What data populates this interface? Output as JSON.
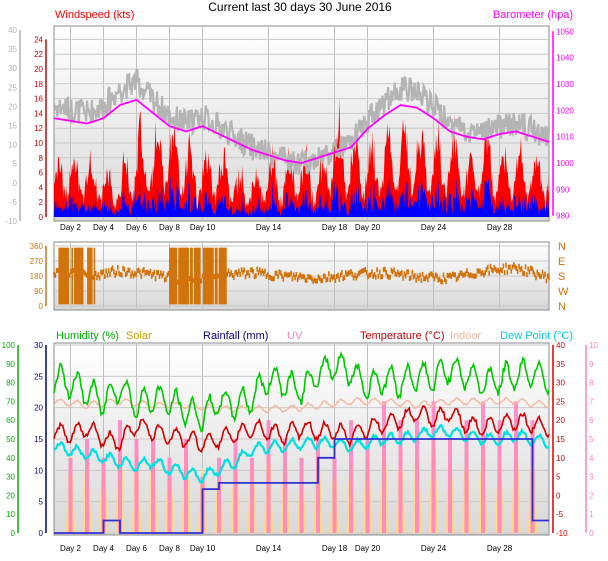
{
  "title": "Current last 30 days 30 June 2016",
  "colors": {
    "wind_avg": "#ff0000",
    "wind_gust": "#ff0000",
    "wind_min": "#0000ff",
    "baro": "#ff00ff",
    "baro_gray": "#b4b4b4",
    "winddir": "#d2720a",
    "humidity": "#00c800",
    "solar": "#c8a000",
    "rain": "#000080",
    "uv": "#ff80c0",
    "temp": "#d20000",
    "indoor": "#f4b8a0",
    "dew": "#00e0e0",
    "plot_bg_top": "#ffffff",
    "plot_bg_bottom": "#d8d8d8"
  },
  "chart_data": [
    {
      "type": "area",
      "name": "wind",
      "title": "",
      "legend": [
        "Windspeed (kts)",
        "Barometer (hpa)"
      ],
      "x_ticks": [
        "Day 2",
        "Day 4",
        "Day 6",
        "Day 8",
        "Day 10",
        "Day 14",
        "Day 18",
        "Day 20",
        "Day 24",
        "Day 28"
      ],
      "x_tick_days": [
        2,
        4,
        6,
        8,
        10,
        14,
        18,
        20,
        24,
        28
      ],
      "x_range_days": [
        1,
        31
      ],
      "y_left_outer": {
        "range": [
          -10,
          40
        ],
        "ticks": [
          -10,
          -5,
          0,
          5,
          10,
          15,
          20,
          25,
          30,
          35,
          40
        ]
      },
      "y_left_inner": {
        "label": "Windspeed (kts)",
        "range": [
          0,
          25
        ],
        "ticks": [
          0,
          2,
          4,
          6,
          8,
          10,
          12,
          14,
          16,
          18,
          20,
          22,
          24
        ]
      },
      "y_right": {
        "label": "Barometer (hpa)",
        "range": [
          978,
          1052
        ],
        "ticks": [
          980,
          990,
          1000,
          1010,
          1020,
          1030,
          1040,
          1050
        ]
      },
      "series": [
        {
          "name": "Windspeed (kts)",
          "color": "#ff0000",
          "style": "filled-bars",
          "day": [
            1,
            2,
            3,
            4,
            5,
            6,
            7,
            8,
            9,
            10,
            11,
            12,
            13,
            14,
            15,
            16,
            17,
            18,
            19,
            20,
            21,
            22,
            23,
            24,
            25,
            26,
            27,
            28,
            29,
            30,
            31
          ],
          "peak": [
            9,
            12,
            10,
            8,
            7,
            15,
            14,
            17,
            12,
            10,
            11,
            8,
            7,
            10,
            10,
            11,
            7,
            18,
            13,
            12,
            13,
            14,
            16,
            13,
            15,
            11,
            14,
            11,
            12,
            10,
            9
          ]
        },
        {
          "name": "Barometer (hpa)",
          "color": "#ff00ff",
          "day": [
            1,
            2,
            3,
            4,
            5,
            6,
            7,
            8,
            9,
            10,
            11,
            12,
            13,
            14,
            15,
            16,
            17,
            18,
            19,
            20,
            21,
            22,
            23,
            24,
            25,
            26,
            27,
            28,
            29,
            30,
            31
          ],
          "value": [
            1017,
            1016,
            1015,
            1017,
            1022,
            1024,
            1019,
            1014,
            1012,
            1014,
            1011,
            1008,
            1005,
            1003,
            1001,
            1000,
            1002,
            1004,
            1006,
            1013,
            1018,
            1022,
            1021,
            1017,
            1012,
            1010,
            1009,
            1011,
            1012,
            1010,
            1008
          ]
        }
      ]
    },
    {
      "type": "scatter",
      "name": "wind direction",
      "y_left": {
        "range": [
          0,
          360
        ],
        "ticks": [
          0,
          90,
          180,
          270,
          360
        ]
      },
      "y_right": {
        "labels": [
          "N",
          "W",
          "S",
          "E",
          "N"
        ]
      },
      "series": [
        {
          "name": "Wind direction",
          "color": "#d2720a",
          "day": [
            1,
            3,
            5,
            7,
            9,
            11,
            13,
            15,
            17,
            19,
            21,
            23,
            25,
            27,
            29,
            31
          ],
          "value": [
            200,
            180,
            210,
            190,
            150,
            185,
            200,
            180,
            165,
            190,
            200,
            175,
            165,
            210,
            230,
            170
          ]
        }
      ]
    },
    {
      "type": "line",
      "name": "climate",
      "legend": [
        "Humidity (%)",
        "Solar",
        "Rainfall (mm)",
        "UV",
        "Temperature (°C)",
        "Indoor",
        "Dew Point (°C)"
      ],
      "y_left_humidity": {
        "label": "Humidity (%)",
        "range": [
          0,
          100
        ],
        "ticks": [
          0,
          10,
          20,
          30,
          40,
          50,
          60,
          70,
          80,
          90,
          100
        ]
      },
      "y_left_rain": {
        "label": "Rainfall (mm)",
        "range": [
          0,
          30
        ],
        "ticks": [
          0,
          5,
          10,
          15,
          20,
          25,
          30
        ]
      },
      "y_right_temp": {
        "label": "Temperature (°C)",
        "range": [
          -10,
          40
        ],
        "ticks": [
          -10,
          -5,
          0,
          5,
          10,
          15,
          20,
          25,
          30,
          35,
          40
        ]
      },
      "y_right_uv": {
        "label": "UV",
        "range": [
          0,
          10
        ],
        "ticks": [
          0,
          1,
          2,
          3,
          4,
          5,
          6,
          7,
          8,
          9,
          10
        ]
      },
      "series": [
        {
          "name": "Humidity (%)",
          "color": "#00c800",
          "day": [
            1,
            2,
            3,
            4,
            5,
            6,
            7,
            8,
            9,
            10,
            11,
            12,
            13,
            14,
            15,
            16,
            17,
            18,
            19,
            20,
            21,
            22,
            23,
            24,
            25,
            26,
            27,
            28,
            29,
            30,
            31
          ],
          "value": [
            82,
            80,
            75,
            70,
            78,
            68,
            72,
            70,
            65,
            62,
            70,
            68,
            72,
            82,
            80,
            76,
            84,
            90,
            86,
            78,
            82,
            80,
            84,
            82,
            88,
            84,
            80,
            82,
            84,
            86,
            82
          ]
        },
        {
          "name": "Temperature (°C)",
          "color": "#d20000",
          "day": [
            1,
            2,
            3,
            4,
            5,
            6,
            7,
            8,
            9,
            10,
            11,
            12,
            13,
            14,
            15,
            16,
            17,
            18,
            19,
            20,
            21,
            22,
            23,
            24,
            25,
            26,
            27,
            28,
            29,
            30,
            31
          ],
          "value": [
            17,
            16,
            18,
            15,
            14,
            19,
            17,
            16,
            15,
            14,
            15,
            16,
            18,
            17,
            16,
            18,
            17,
            17,
            16,
            18,
            19,
            20,
            22,
            20,
            22,
            19,
            18,
            19,
            20,
            19,
            18
          ]
        },
        {
          "name": "Indoor",
          "color": "#f4b8a0",
          "day": [
            1,
            3,
            5,
            7,
            9,
            11,
            13,
            15,
            17,
            19,
            21,
            23,
            25,
            27,
            29,
            31
          ],
          "value": [
            25,
            24,
            25,
            24,
            24,
            23,
            23,
            23,
            24,
            25,
            25,
            24,
            25,
            25,
            25,
            24
          ]
        },
        {
          "name": "Dew Point (°C)",
          "color": "#00e0e0",
          "day": [
            1,
            2,
            3,
            4,
            5,
            6,
            7,
            8,
            9,
            10,
            11,
            12,
            13,
            14,
            15,
            16,
            17,
            18,
            19,
            20,
            21,
            22,
            23,
            24,
            25,
            26,
            27,
            28,
            29,
            30,
            31
          ],
          "value": [
            13,
            12,
            11,
            10,
            9,
            8,
            9,
            7,
            6,
            5,
            7,
            9,
            12,
            13,
            13,
            14,
            14,
            14,
            13,
            14,
            15,
            15,
            16,
            17,
            17,
            16,
            15,
            15,
            16,
            15,
            14
          ]
        },
        {
          "name": "Rainfall (mm)",
          "color": "#3030d0",
          "day": [
            1,
            3,
            4,
            5,
            9,
            10,
            11,
            12,
            16,
            17,
            18,
            20,
            21,
            23,
            25,
            27,
            29,
            30,
            31
          ],
          "value": [
            0,
            0,
            2,
            0,
            0,
            7,
            8,
            8,
            8,
            12,
            15,
            15,
            15,
            15,
            15,
            15,
            15,
            2,
            2
          ]
        },
        {
          "name": "Solar",
          "color": "#ffd88a",
          "day_peaks": [
            2,
            3,
            4,
            5,
            6,
            7,
            8,
            9,
            10,
            11,
            12,
            13,
            14,
            15,
            16,
            17,
            18,
            19,
            20,
            21,
            22,
            23,
            24,
            25,
            26,
            27,
            28,
            29,
            30
          ],
          "value": [
            24,
            26,
            22,
            30,
            26,
            28,
            22,
            26,
            20,
            20,
            24,
            22,
            28,
            24,
            20,
            26,
            22,
            24,
            28,
            30,
            26,
            28,
            30,
            24,
            26,
            28,
            24,
            30,
            26
          ]
        },
        {
          "name": "UV",
          "color": "#ff80c0",
          "day_peaks": [
            2,
            3,
            4,
            5,
            6,
            7,
            8,
            9,
            10,
            11,
            12,
            13,
            14,
            15,
            16,
            17,
            18,
            19,
            20,
            21,
            22,
            23,
            24,
            25,
            26,
            27,
            28,
            29,
            30
          ],
          "value": [
            4,
            5,
            4,
            6,
            5,
            5,
            4,
            5,
            3,
            4,
            5,
            4,
            6,
            5,
            4,
            5,
            4,
            6,
            5,
            7,
            6,
            6,
            7,
            5,
            6,
            7,
            6,
            7,
            6
          ]
        }
      ]
    }
  ]
}
